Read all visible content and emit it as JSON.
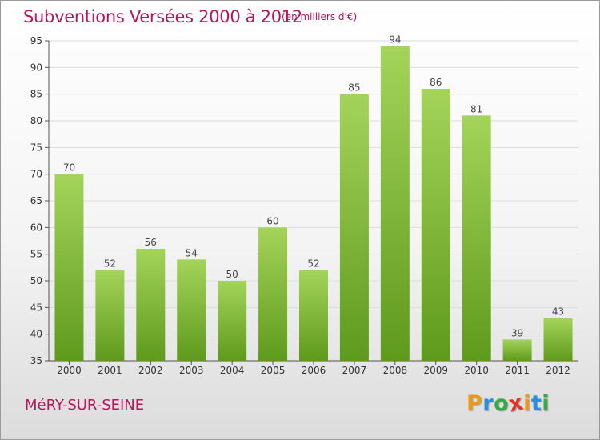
{
  "header": {
    "title": "Subventions Versées 2000 à 2012",
    "unit": "(en milliers d'€)"
  },
  "footer": {
    "place": "MéRY-SUR-SEINE",
    "logo": {
      "letters": [
        "P",
        "r",
        "o",
        "x",
        "i",
        "t",
        "i"
      ],
      "colors": [
        "#e89a1a",
        "#2a8fd8",
        "#3aa847",
        "#e0342b",
        "#e89a1a",
        "#2a8fd8",
        "#3aa847"
      ]
    }
  },
  "colors": {
    "title": "#b5175a",
    "bar_light": "#a4d45a",
    "bar_dark": "#5e9a1c",
    "grid": "#dddddd",
    "axis": "#555555"
  },
  "chart_data": {
    "type": "bar",
    "categories": [
      "2000",
      "2001",
      "2002",
      "2003",
      "2004",
      "2005",
      "2006",
      "2007",
      "2008",
      "2009",
      "2010",
      "2011",
      "2012"
    ],
    "values": [
      70,
      52,
      56,
      54,
      50,
      60,
      52,
      85,
      94,
      86,
      81,
      39,
      43
    ],
    "title": "Subventions Versées 2000 à 2012",
    "ylim": [
      35,
      95
    ],
    "yticks": [
      35,
      40,
      45,
      50,
      55,
      60,
      65,
      70,
      75,
      80,
      85,
      90,
      95
    ],
    "grid": true,
    "data_labels": true
  }
}
